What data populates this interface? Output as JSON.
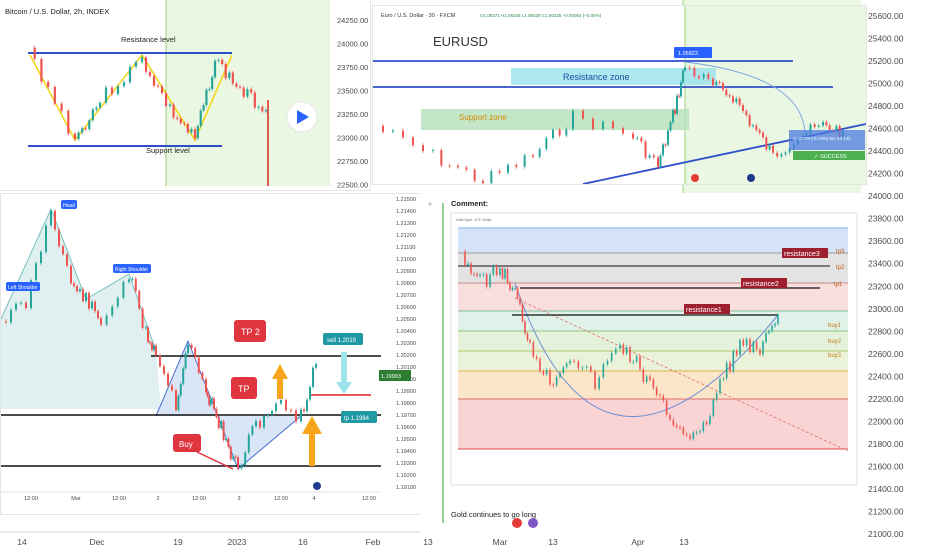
{
  "chart_data": [
    {
      "type": "line",
      "title": "",
      "main_axis": {
        "right_ticks": [
          "25600.00",
          "25400.00",
          "25200.00",
          "25000.00",
          "24800.00",
          "24600.00",
          "24400.00",
          "24200.00",
          "24000.00",
          "23800.00",
          "23600.00",
          "23400.00",
          "23200.00",
          "23000.00",
          "22800.00",
          "22600.00",
          "22400.00",
          "22200.00",
          "22000.00",
          "21800.00",
          "21600.00",
          "21400.00",
          "21200.00",
          "21000.00"
        ],
        "bottom_ticks": [
          "14",
          "Dec",
          "19",
          "2023",
          "16",
          "Feb",
          "13",
          "Mar",
          "13",
          "Apr",
          "13"
        ],
        "ylim": [
          21000,
          25600
        ]
      }
    },
    {
      "type": "line",
      "title": "Bitcoin / U.S. Dollar, 2h, INDEX",
      "y_ticks": [
        "24250.00",
        "24000.00",
        "23750.00",
        "23500.00",
        "23250.00",
        "23000.00",
        "22750.00",
        "22500.00"
      ],
      "ylim": [
        22500,
        24250
      ],
      "annotations": {
        "resistance": "Resistance level",
        "support": "Support level"
      },
      "resistance_level": 23900,
      "support_level": 22940
    },
    {
      "type": "line",
      "title": "Euro / U.S. Dollar · 30 · FXCM",
      "header_values": "O1.06371 H1.06348 L1.06029 C1.06325 +0.00054 (+0.05%)",
      "big_label": "EURUSD",
      "zones": {
        "resistance": "Resistance zone",
        "support": "Support zone"
      },
      "price_tag": "1.05823",
      "success_label": "✓ SUCCESS",
      "info_label": "-0.00779 (-0.73%) 5m 14 14h"
    },
    {
      "type": "line",
      "title": "",
      "ticks": [
        "1.21500",
        "1.21400",
        "1.21300",
        "1.21200",
        "1.21100",
        "1.21000",
        "1.20900",
        "1.20800",
        "1.20700",
        "1.20600",
        "1.20500",
        "1.20400",
        "1.20300",
        "1.20200",
        "1.20100",
        "1.20000",
        "1.19900",
        "1.19800",
        "1.19700",
        "1.19600",
        "1.19500",
        "1.19400",
        "1.19300",
        "1.19200",
        "1.19100"
      ],
      "ylim": [
        1.191,
        1.215
      ],
      "labels": {
        "left_shoulder": "Left Shoulder",
        "head": "Head",
        "right_shoulder": "Right Shoulder",
        "tp2": "TP 2",
        "tp": "TP",
        "buy": "Buy",
        "sell": "sell 1.2019",
        "tp_small": "tp 1.1984",
        "current": "1.19993"
      },
      "bottom_ticks": [
        "12:00",
        "Mar",
        "12:00",
        "2",
        "12:00",
        "3",
        "12:00",
        "4",
        "12:00"
      ]
    },
    {
      "type": "line",
      "title": "Gold Spot · U.S. Dollar",
      "comment_heading": "Comment:",
      "comment_text": "Gold continues to go long",
      "levels": [
        "resistance3",
        "resistance2",
        "resistance1"
      ],
      "side_labels": [
        "tp3",
        "tp2",
        "tp1",
        "buy1",
        "buy2",
        "buy3"
      ]
    }
  ]
}
